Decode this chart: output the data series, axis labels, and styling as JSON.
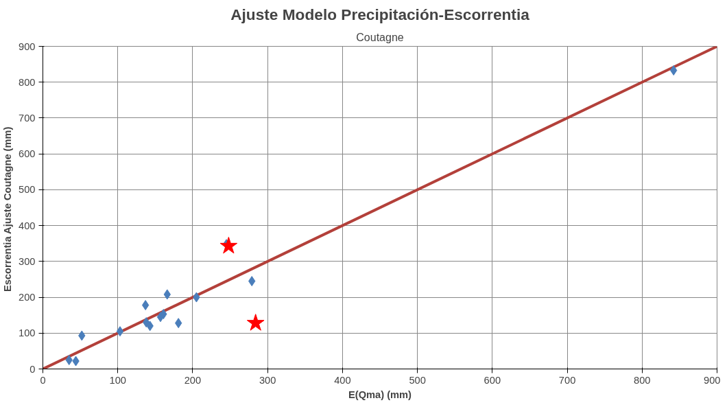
{
  "chart_data": {
    "type": "scatter",
    "title": "Ajuste Modelo Precipitación-Escorrentia",
    "subtitle": "Coutagne",
    "xlabel": "E(Qma) (mm)",
    "ylabel": "Escorrentia Ajuste  Coutagne (mm)",
    "xlim": [
      0,
      900
    ],
    "ylim": [
      0,
      900
    ],
    "xticks": [
      0,
      100,
      200,
      300,
      400,
      500,
      600,
      700,
      800,
      900
    ],
    "yticks": [
      0,
      100,
      200,
      300,
      400,
      500,
      600,
      700,
      800,
      900
    ],
    "grid": true,
    "series": [
      {
        "type": "line",
        "color": "#b3403a",
        "marker": "none",
        "x": [
          0,
          900
        ],
        "values": [
          0,
          900
        ]
      },
      {
        "color": "#4a7ebb",
        "marker": "diamond",
        "x": [
          35,
          44,
          52,
          103,
          137,
          138,
          143,
          157,
          161,
          166,
          181,
          205,
          245,
          279,
          842
        ],
        "values": [
          25,
          22,
          93,
          105,
          178,
          130,
          120,
          145,
          153,
          208,
          128,
          200,
          348,
          245,
          833
        ]
      },
      {
        "color": "#ff0000",
        "marker": "star",
        "x": [
          248,
          284
        ],
        "values": [
          343,
          128
        ]
      }
    ]
  }
}
